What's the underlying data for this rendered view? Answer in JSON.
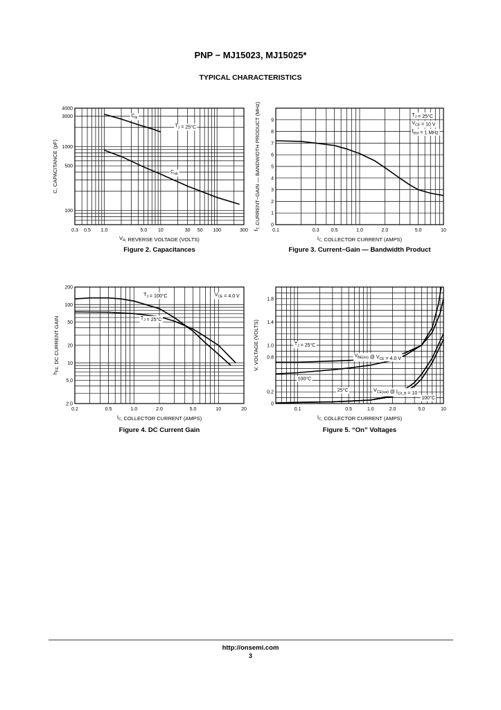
{
  "header": {
    "title": "PNP − MJ15023, MJ15025*",
    "section": "TYPICAL CHARACTERISTICS"
  },
  "footer": {
    "url": "http://onsemi.com",
    "page": "3"
  },
  "chart_data": [
    {
      "id": "fig2",
      "type": "line",
      "title": "Figure 2. Capacitances",
      "xscale": "log",
      "yscale": "log",
      "xlim": [
        0.3,
        300
      ],
      "ylim": [
        60,
        4000
      ],
      "xticks": [
        0.3,
        0.5,
        1.0,
        5.0,
        10,
        30,
        50,
        100,
        300
      ],
      "xtick_labels": [
        "0.3",
        "0.5",
        "1.0",
        "5.0",
        "10",
        "30",
        "50",
        "100",
        "300"
      ],
      "yticks": [
        100,
        500,
        1000,
        3000,
        4000
      ],
      "ytick_labels": [
        "100",
        "500",
        "1000",
        "3000",
        "4000"
      ],
      "xlabel": "V_R, REVERSE VOLTAGE (VOLTS)",
      "ylabel": "C, CAPACITANCE (pF)",
      "annotations": [
        {
          "text": "T_J = 25°C",
          "x": 18,
          "y": 2000
        },
        {
          "text": "C_ib",
          "x": 3.0,
          "y": 2900
        },
        {
          "text": "C_ob",
          "x": 15,
          "y": 380
        }
      ],
      "series": [
        {
          "name": "Cib",
          "x": [
            1.0,
            2.0,
            4.0,
            7.0,
            10
          ],
          "y": [
            3200,
            2700,
            2200,
            1900,
            1700
          ]
        },
        {
          "name": "Cob",
          "x": [
            1.0,
            2.0,
            5.0,
            10,
            30,
            100,
            250
          ],
          "y": [
            880,
            700,
            480,
            370,
            240,
            160,
            125
          ]
        }
      ]
    },
    {
      "id": "fig3",
      "type": "line",
      "title": "Figure 3. Current−Gain — Bandwidth Product",
      "xscale": "log",
      "yscale": "linear",
      "xlim": [
        0.1,
        10
      ],
      "ylim": [
        0,
        10
      ],
      "xticks": [
        0.1,
        0.3,
        0.5,
        1.0,
        2.0,
        5.0,
        10
      ],
      "xtick_labels": [
        "0.1",
        "0.3",
        "0.5",
        "1.0",
        "2.0",
        "5.0",
        "10"
      ],
      "yticks": [
        0,
        1,
        2,
        3,
        4,
        5,
        6,
        7,
        8,
        9
      ],
      "ytick_labels": [
        "0",
        "1",
        "2",
        "3",
        "4",
        "5",
        "6",
        "7",
        "8",
        "9"
      ],
      "xlabel": "I_C, COLLECTOR CURRENT (AMPS)",
      "ylabel": "f_T, CURRENT−GAIN — BANDWIDTH PRODUCT (MHz)",
      "annotations": [
        {
          "text": "T_J = 25°C",
          "x": 4.2,
          "y": 9.3
        },
        {
          "text": "V_CE = 10 V",
          "x": 4.2,
          "y": 8.6
        },
        {
          "text": "f_test = 1 MHz",
          "x": 4.2,
          "y": 7.9
        }
      ],
      "series": [
        {
          "name": "fT",
          "x": [
            0.1,
            0.2,
            0.3,
            0.5,
            0.7,
            1.0,
            1.5,
            2.0,
            3.0,
            4.0,
            5.0,
            7.0,
            10
          ],
          "y": [
            7.2,
            7.15,
            7.0,
            6.8,
            6.5,
            6.1,
            5.5,
            4.9,
            4.0,
            3.4,
            3.0,
            2.7,
            2.5
          ]
        }
      ]
    },
    {
      "id": "fig4",
      "type": "line",
      "title": "Figure 4. DC Current Gain",
      "xscale": "log",
      "yscale": "log",
      "xlim": [
        0.2,
        20
      ],
      "ylim": [
        2,
        200
      ],
      "xticks": [
        0.2,
        0.5,
        1.0,
        2.0,
        5.0,
        10,
        20
      ],
      "xtick_labels": [
        "0.2",
        "0.5",
        "1.0",
        "2.0",
        "5.0",
        "10",
        "20"
      ],
      "yticks": [
        2,
        5,
        10,
        20,
        50,
        100,
        200
      ],
      "ytick_labels": [
        "2.0",
        "5.0",
        "10",
        "20",
        "50",
        "100",
        "200"
      ],
      "xlabel": "I_C, COLLECTOR CURRENT (AMPS)",
      "ylabel": "h_FE, DC CURRENT GAIN",
      "annotations": [
        {
          "text": "T_J = 100°C",
          "x": 1.3,
          "y": 140
        },
        {
          "text": "T_J = 25°C",
          "x": 1.2,
          "y": 55
        },
        {
          "text": "V_CE = 4.0 V",
          "x": 9.0,
          "y": 140
        }
      ],
      "series": [
        {
          "name": "TJ = 100°C",
          "x": [
            0.2,
            0.3,
            0.5,
            0.7,
            1.0,
            2.0,
            3.0,
            5.0,
            7.0,
            10,
            14
          ],
          "y": [
            125,
            130,
            130,
            125,
            115,
            85,
            60,
            35,
            22,
            14,
            9
          ]
        },
        {
          "name": "TJ = 25°C",
          "x": [
            0.2,
            0.5,
            1.0,
            2.0,
            3.0,
            5.0,
            7.0,
            10,
            16
          ],
          "y": [
            75,
            74,
            70,
            62,
            52,
            38,
            28,
            20,
            10
          ]
        }
      ]
    },
    {
      "id": "fig5",
      "type": "line",
      "title": "Figure 5. “On” Voltages",
      "xscale": "log",
      "yscale": "linear",
      "xlim": [
        0.05,
        10
      ],
      "ylim": [
        0,
        2.0
      ],
      "xticks": [
        0.1,
        0.5,
        1.0,
        2.0,
        5.0,
        10
      ],
      "xtick_labels": [
        "0.1",
        "0.5",
        "1.0",
        "2.0",
        "5.0",
        "10"
      ],
      "yticks": [
        0,
        0.2,
        0.8,
        1.0,
        1.4,
        1.8
      ],
      "ytick_labels": [
        "0",
        "0.2",
        "0.8",
        "1.0",
        "1.4",
        "1.8"
      ],
      "xlabel": "I_C, COLLECTOR CURRENT (AMPS)",
      "ylabel": "V, VOLTAGE (VOLTS)",
      "annotations": [
        {
          "text": "T_J = 25°C",
          "x": 0.09,
          "y": 1.0
        },
        {
          "text": "V_BE(on) @ V_CE = 4.0 V",
          "x": 0.6,
          "y": 0.8
        },
        {
          "text": "100°C",
          "x": 0.1,
          "y": 0.4
        },
        {
          "text": "25°C",
          "x": 0.35,
          "y": 0.2
        },
        {
          "text": "V_CE(sat) @ I_C/I_B = 10",
          "x": 1.1,
          "y": 0.2
        },
        {
          "text": "100°C",
          "x": 5.0,
          "y": 0.07
        }
      ],
      "series": [
        {
          "name": "VBE(on) 25°C",
          "x": [
            0.05,
            0.1,
            0.3,
            0.5,
            1.0,
            2.0,
            3.0,
            5.0,
            7.0,
            9.0,
            10
          ],
          "y": [
            0.71,
            0.71,
            0.73,
            0.74,
            0.76,
            0.81,
            0.87,
            1.0,
            1.22,
            1.55,
            1.8
          ]
        },
        {
          "name": "VBE(on) 100°C",
          "x": [
            0.05,
            0.1,
            0.3,
            0.5,
            1.0,
            2.0,
            3.0,
            5.0,
            7.0,
            8.5,
            9.3
          ],
          "y": [
            0.51,
            0.53,
            0.58,
            0.61,
            0.66,
            0.74,
            0.83,
            1.0,
            1.3,
            1.7,
            2.0
          ]
        },
        {
          "name": "VCE(sat) 25°C",
          "x": [
            0.05,
            0.1,
            0.3,
            0.5,
            1.0,
            2.0,
            3.0,
            4.0,
            5.0,
            7.0,
            10
          ],
          "y": [
            0.01,
            0.02,
            0.03,
            0.04,
            0.06,
            0.12,
            0.21,
            0.3,
            0.42,
            0.7,
            1.1
          ]
        },
        {
          "name": "VCE(sat) 100°C",
          "x": [
            0.05,
            0.1,
            0.3,
            0.5,
            1.0,
            2.0,
            3.0,
            4.0,
            5.0,
            7.0,
            10
          ],
          "y": [
            0.01,
            0.02,
            0.03,
            0.04,
            0.06,
            0.14,
            0.25,
            0.36,
            0.5,
            0.78,
            1.2
          ]
        }
      ]
    }
  ]
}
